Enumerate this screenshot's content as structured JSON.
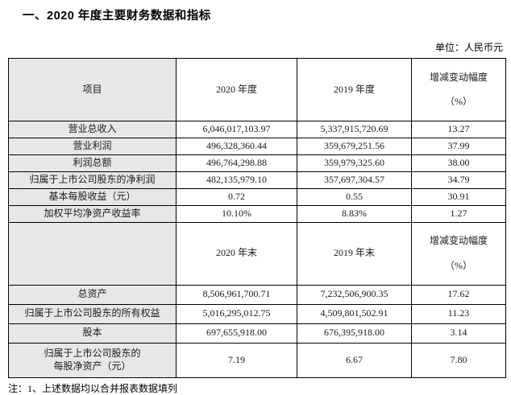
{
  "page": {
    "title": "一、2020 年度主要财务数据和指标",
    "unit_label": "单位：人民币元",
    "footnote": "注：1、上述数据均以合并报表数据填列"
  },
  "colors": {
    "border": "#000000",
    "item_column_shade": "#e7e7e7",
    "background": "#ffffff",
    "text": "#000000"
  },
  "table": {
    "section1": {
      "header": {
        "item": "项目",
        "col_a": "2020 年度",
        "col_b": "2019 年度",
        "change_l1": "增减变动幅度",
        "change_l2": "（%）"
      },
      "rows": [
        {
          "item": "营业总收入",
          "val_a": "6,046,017,103.97",
          "val_b": "5,337,915,720.69",
          "change": "13.27"
        },
        {
          "item": "营业利润",
          "val_a": "496,328,360.44",
          "val_b": "359,679,251.56",
          "change": "37.99"
        },
        {
          "item": "利润总额",
          "val_a": "496,764,298.88",
          "val_b": "359,979,325.60",
          "change": "38.00"
        },
        {
          "item": "归属于上市公司股东的净利润",
          "val_a": "482,135,979.10",
          "val_b": "357,697,304.57",
          "change": "34.79"
        },
        {
          "item": "基本每股收益（元）",
          "val_a": "0.72",
          "val_b": "0.55",
          "change": "30.91"
        },
        {
          "item": "加权平均净资产收益率",
          "val_a": "10.10%",
          "val_b": "8.83%",
          "change": "1.27"
        }
      ]
    },
    "section2": {
      "header": {
        "item": "",
        "col_a": "2020 年末",
        "col_b": "2019 年末",
        "change_l1": "增减变动幅度",
        "change_l2": "（%）"
      },
      "rows": [
        {
          "item": "总资产",
          "val_a": "8,506,961,700.71",
          "val_b": "7,232,506,900.35",
          "change": "17.62"
        },
        {
          "item": "归属于上市公司股东的所有权益",
          "val_a": "5,016,295,012.75",
          "val_b": "4,509,801,502.91",
          "change": "11.23"
        },
        {
          "item": "股本",
          "val_a": "697,655,918.00",
          "val_b": "676,395,918.00",
          "change": "3.14"
        },
        {
          "item": "归属于上市公司股东的\n每股净资产（元）",
          "val_a": "7.19",
          "val_b": "6.67",
          "change": "7.80"
        }
      ]
    }
  }
}
